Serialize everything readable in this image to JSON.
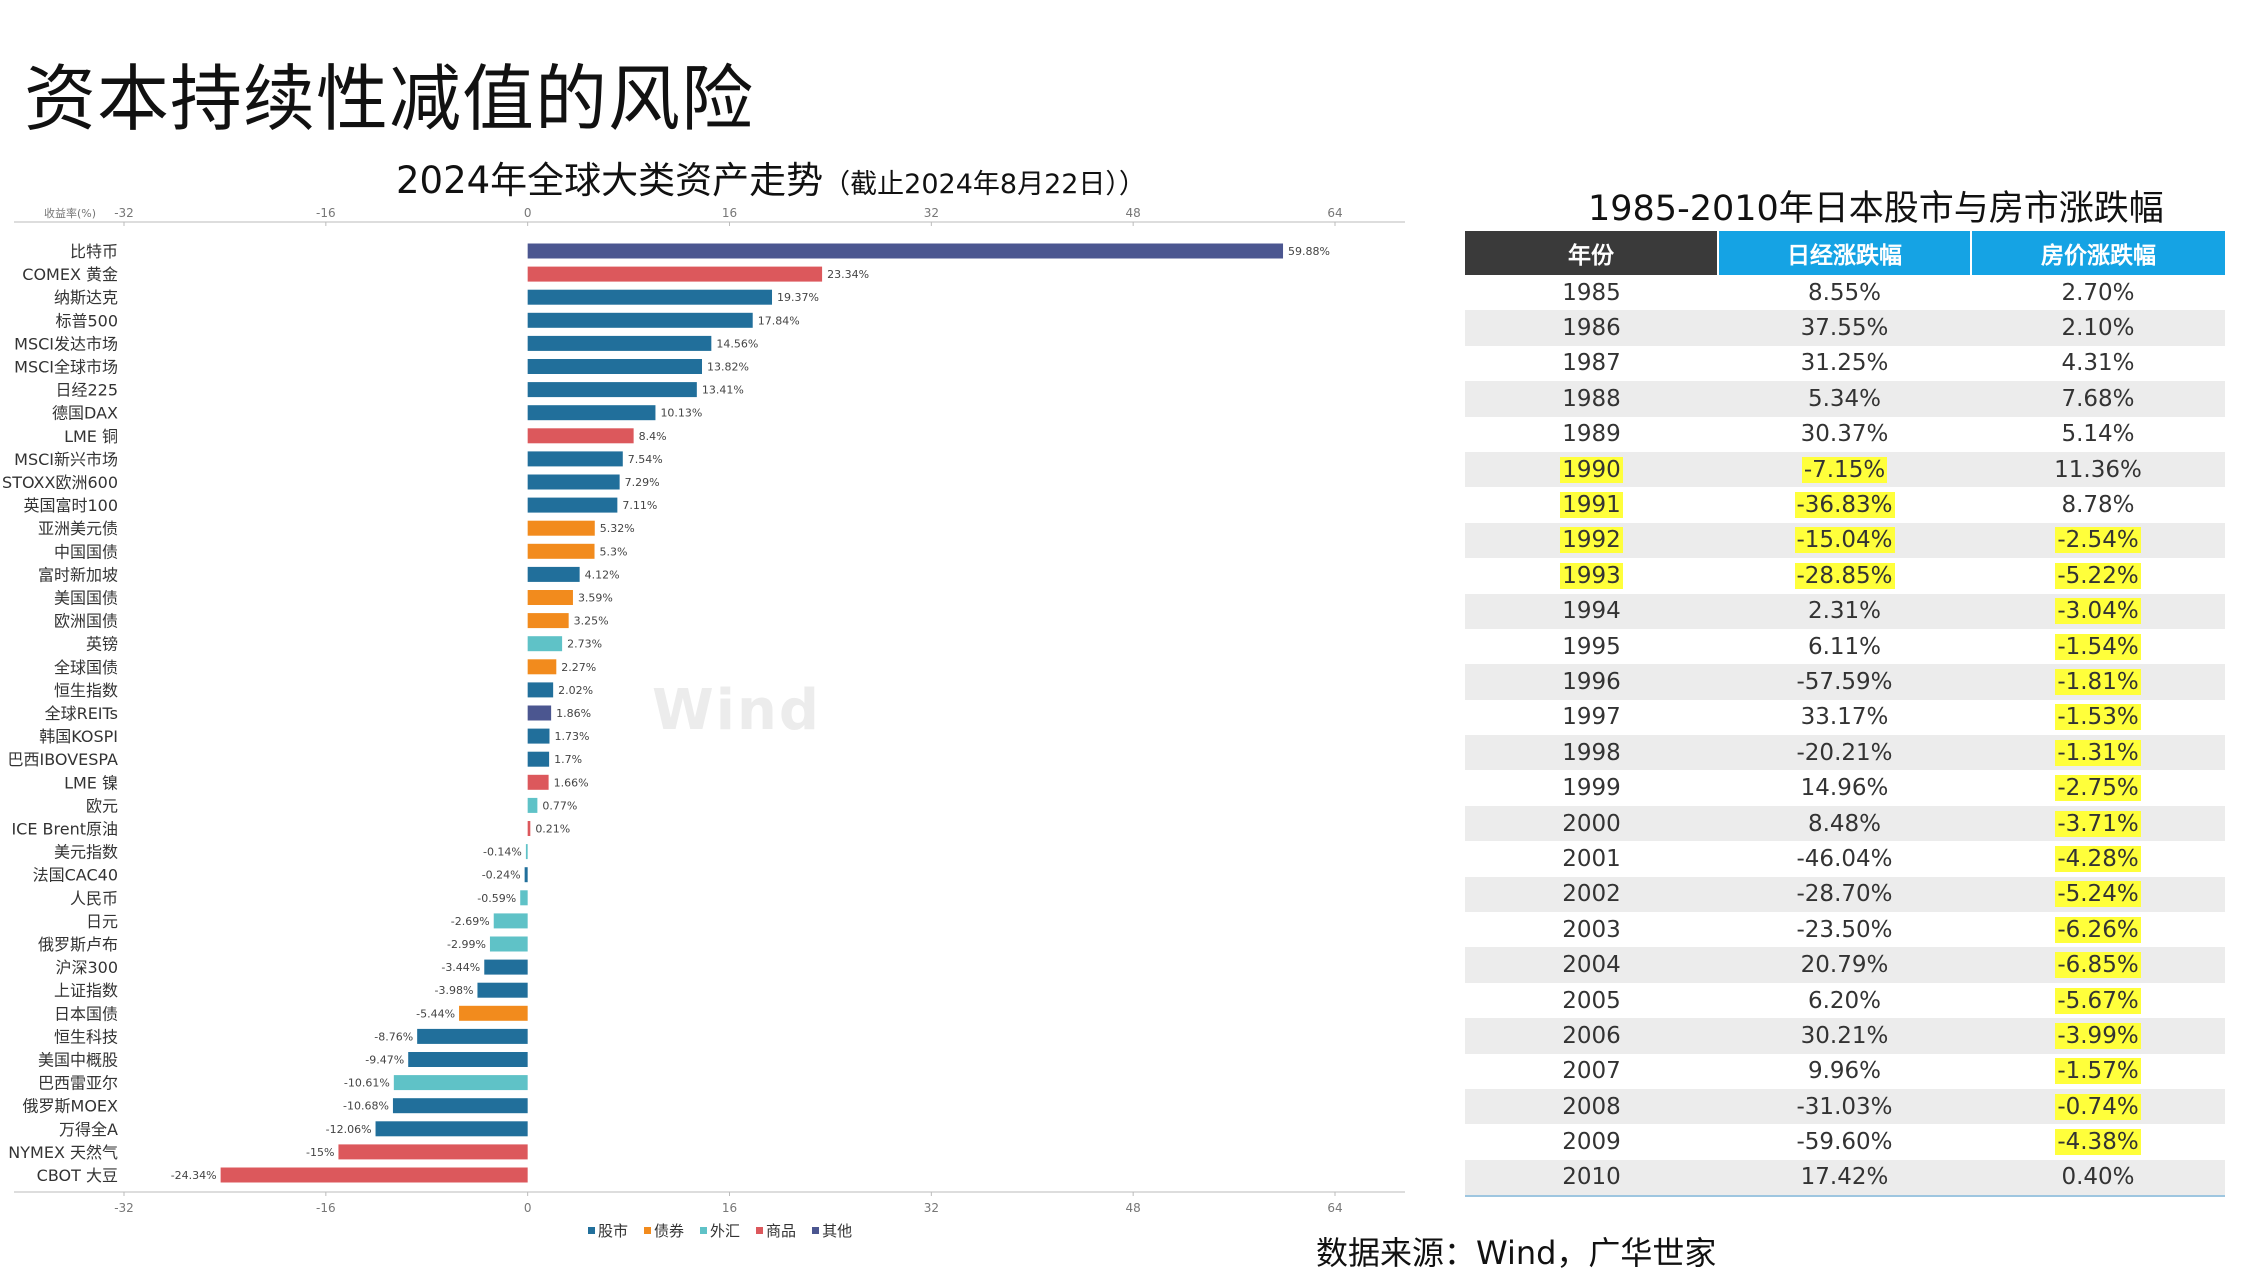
{
  "slide": {
    "title": "资本持续性减值的风险",
    "source": "数据来源：Wind，广华世家"
  },
  "chart_data": {
    "type": "bar",
    "orientation": "horizontal",
    "title": "2024年全球大类资产走势",
    "subtitle": "（截止2024年8月22日））",
    "axis_label": "收益率(%)",
    "xlim": [
      -32,
      64
    ],
    "ticks": [
      -32,
      -16,
      0,
      16,
      32,
      48,
      64
    ],
    "legend": [
      {
        "name": "股市",
        "color": "#216f9b"
      },
      {
        "name": "债券",
        "color": "#f28b1d"
      },
      {
        "name": "外汇",
        "color": "#5fc2c7"
      },
      {
        "name": "商品",
        "color": "#dc585c"
      },
      {
        "name": "其他",
        "color": "#4b5690"
      }
    ],
    "categories": [
      "比特币",
      "COMEX 黄金",
      "纳斯达克",
      "标普500",
      "MSCI发达市场",
      "MSCI全球市场",
      "日经225",
      "德国DAX",
      "LME 铜",
      "MSCI新兴市场",
      "STOXX欧洲600",
      "英国富时100",
      "亚洲美元债",
      "中国国债",
      "富时新加坡",
      "美国国债",
      "欧洲国债",
      "英镑",
      "全球国债",
      "恒生指数",
      "全球REITs",
      "韩国KOSPI",
      "巴西IBOVESPA",
      "LME 镍",
      "欧元",
      "ICE Brent原油",
      "美元指数",
      "法国CAC40",
      "人民币",
      "日元",
      "俄罗斯卢布",
      "沪深300",
      "上证指数",
      "日本国债",
      "恒生科技",
      "美国中概股",
      "巴西雷亚尔",
      "俄罗斯MOEX",
      "万得全A",
      "NYMEX 天然气",
      "CBOT 大豆"
    ],
    "values": [
      59.88,
      23.34,
      19.37,
      17.84,
      14.56,
      13.82,
      13.41,
      10.13,
      8.4,
      7.54,
      7.29,
      7.11,
      5.32,
      5.3,
      4.12,
      3.59,
      3.25,
      2.73,
      2.27,
      2.02,
      1.86,
      1.73,
      1.7,
      1.66,
      0.77,
      0.21,
      -0.14,
      -0.24,
      -0.59,
      -2.69,
      -2.99,
      -3.44,
      -3.98,
      -5.44,
      -8.76,
      -9.47,
      -10.61,
      -10.68,
      -12.06,
      -15,
      -24.34
    ],
    "value_labels": [
      "59.88%",
      "23.34%",
      "19.37%",
      "17.84%",
      "14.56%",
      "13.82%",
      "13.41%",
      "10.13%",
      "8.4%",
      "7.54%",
      "7.29%",
      "7.11%",
      "5.32%",
      "5.3%",
      "4.12%",
      "3.59%",
      "3.25%",
      "2.73%",
      "2.27%",
      "2.02%",
      "1.86%",
      "1.73%",
      "1.7%",
      "1.66%",
      "0.77%",
      "0.21%",
      "-0.14%",
      "-0.24%",
      "-0.59%",
      "-2.69%",
      "-2.99%",
      "-3.44%",
      "-3.98%",
      "-5.44%",
      "-8.76%",
      "-9.47%",
      "-10.61%",
      "-10.68%",
      "-12.06%",
      "-15%",
      "-24.34%"
    ],
    "classes": [
      "其他",
      "商品",
      "股市",
      "股市",
      "股市",
      "股市",
      "股市",
      "股市",
      "商品",
      "股市",
      "股市",
      "股市",
      "债券",
      "债券",
      "股市",
      "债券",
      "债券",
      "外汇",
      "债券",
      "股市",
      "其他",
      "股市",
      "股市",
      "商品",
      "外汇",
      "商品",
      "外汇",
      "股市",
      "外汇",
      "外汇",
      "外汇",
      "股市",
      "股市",
      "债券",
      "股市",
      "股市",
      "外汇",
      "股市",
      "股市",
      "商品",
      "商品"
    ],
    "watermark": "Wind"
  },
  "table": {
    "title": "1985-2010年日本股市与房市涨跌幅",
    "headers": [
      "年份",
      "日经涨跌幅",
      "房价涨跌幅"
    ],
    "highlight_color": "#ffff3b",
    "rows": [
      {
        "year": "1985",
        "nikkei": "8.55%",
        "house": "2.70%",
        "hl_year": false,
        "hl_nikkei": false,
        "hl_house": false
      },
      {
        "year": "1986",
        "nikkei": "37.55%",
        "house": "2.10%",
        "hl_year": false,
        "hl_nikkei": false,
        "hl_house": false
      },
      {
        "year": "1987",
        "nikkei": "31.25%",
        "house": "4.31%",
        "hl_year": false,
        "hl_nikkei": false,
        "hl_house": false
      },
      {
        "year": "1988",
        "nikkei": "5.34%",
        "house": "7.68%",
        "hl_year": false,
        "hl_nikkei": false,
        "hl_house": false
      },
      {
        "year": "1989",
        "nikkei": "30.37%",
        "house": "5.14%",
        "hl_year": false,
        "hl_nikkei": false,
        "hl_house": false
      },
      {
        "year": "1990",
        "nikkei": "-7.15%",
        "house": "11.36%",
        "hl_year": true,
        "hl_nikkei": true,
        "hl_house": false
      },
      {
        "year": "1991",
        "nikkei": "-36.83%",
        "house": "8.78%",
        "hl_year": true,
        "hl_nikkei": true,
        "hl_house": false
      },
      {
        "year": "1992",
        "nikkei": "-15.04%",
        "house": "-2.54%",
        "hl_year": true,
        "hl_nikkei": true,
        "hl_house": true
      },
      {
        "year": "1993",
        "nikkei": "-28.85%",
        "house": "-5.22%",
        "hl_year": true,
        "hl_nikkei": true,
        "hl_house": true
      },
      {
        "year": "1994",
        "nikkei": "2.31%",
        "house": "-3.04%",
        "hl_year": false,
        "hl_nikkei": false,
        "hl_house": true
      },
      {
        "year": "1995",
        "nikkei": "6.11%",
        "house": "-1.54%",
        "hl_year": false,
        "hl_nikkei": false,
        "hl_house": true
      },
      {
        "year": "1996",
        "nikkei": "-57.59%",
        "house": "-1.81%",
        "hl_year": false,
        "hl_nikkei": false,
        "hl_house": true
      },
      {
        "year": "1997",
        "nikkei": "33.17%",
        "house": "-1.53%",
        "hl_year": false,
        "hl_nikkei": false,
        "hl_house": true
      },
      {
        "year": "1998",
        "nikkei": "-20.21%",
        "house": "-1.31%",
        "hl_year": false,
        "hl_nikkei": false,
        "hl_house": true
      },
      {
        "year": "1999",
        "nikkei": "14.96%",
        "house": "-2.75%",
        "hl_year": false,
        "hl_nikkei": false,
        "hl_house": true
      },
      {
        "year": "2000",
        "nikkei": "8.48%",
        "house": "-3.71%",
        "hl_year": false,
        "hl_nikkei": false,
        "hl_house": true
      },
      {
        "year": "2001",
        "nikkei": "-46.04%",
        "house": "-4.28%",
        "hl_year": false,
        "hl_nikkei": false,
        "hl_house": true
      },
      {
        "year": "2002",
        "nikkei": "-28.70%",
        "house": "-5.24%",
        "hl_year": false,
        "hl_nikkei": false,
        "hl_house": true
      },
      {
        "year": "2003",
        "nikkei": "-23.50%",
        "house": "-6.26%",
        "hl_year": false,
        "hl_nikkei": false,
        "hl_house": true
      },
      {
        "year": "2004",
        "nikkei": "20.79%",
        "house": "-6.85%",
        "hl_year": false,
        "hl_nikkei": false,
        "hl_house": true
      },
      {
        "year": "2005",
        "nikkei": "6.20%",
        "house": "-5.67%",
        "hl_year": false,
        "hl_nikkei": false,
        "hl_house": true
      },
      {
        "year": "2006",
        "nikkei": "30.21%",
        "house": "-3.99%",
        "hl_year": false,
        "hl_nikkei": false,
        "hl_house": true
      },
      {
        "year": "2007",
        "nikkei": "9.96%",
        "house": "-1.57%",
        "hl_year": false,
        "hl_nikkei": false,
        "hl_house": true
      },
      {
        "year": "2008",
        "nikkei": "-31.03%",
        "house": "-0.74%",
        "hl_year": false,
        "hl_nikkei": false,
        "hl_house": true
      },
      {
        "year": "2009",
        "nikkei": "-59.60%",
        "house": "-4.38%",
        "hl_year": false,
        "hl_nikkei": false,
        "hl_house": true
      },
      {
        "year": "2010",
        "nikkei": "17.42%",
        "house": "0.40%",
        "hl_year": false,
        "hl_nikkei": false,
        "hl_house": false
      }
    ]
  }
}
